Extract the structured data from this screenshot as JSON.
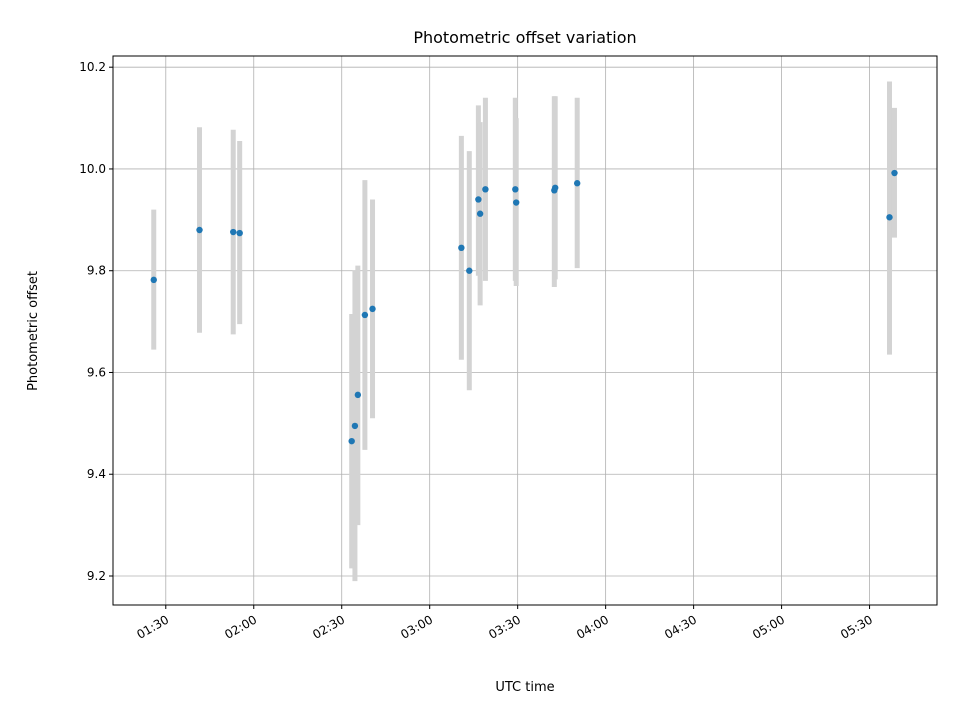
{
  "chart_data": {
    "type": "scatter",
    "title": "Photometric offset variation",
    "xlabel": "UTC time",
    "ylabel": "Photometric offset",
    "xlim_minutes": [
      72,
      353
    ],
    "ylim": [
      9.143,
      10.222
    ],
    "grid": true,
    "point_color": "#1f77b4",
    "errorbar_color": "#d3d3d3",
    "x_ticks": [
      {
        "minute": 90,
        "label": "01:30"
      },
      {
        "minute": 120,
        "label": "02:00"
      },
      {
        "minute": 150,
        "label": "02:30"
      },
      {
        "minute": 180,
        "label": "03:00"
      },
      {
        "minute": 210,
        "label": "03:30"
      },
      {
        "minute": 240,
        "label": "04:00"
      },
      {
        "minute": 270,
        "label": "04:30"
      },
      {
        "minute": 300,
        "label": "05:00"
      },
      {
        "minute": 330,
        "label": "05:30"
      }
    ],
    "y_ticks": [
      {
        "value": 9.2,
        "label": "9.2"
      },
      {
        "value": 9.4,
        "label": "9.4"
      },
      {
        "value": 9.6,
        "label": "9.6"
      },
      {
        "value": 9.8,
        "label": "9.8"
      },
      {
        "value": 10.0,
        "label": "10.0"
      },
      {
        "value": 10.2,
        "label": "10.2"
      }
    ],
    "points": [
      {
        "t": 85.9,
        "y": 9.782,
        "lo": 9.645,
        "hi": 9.92
      },
      {
        "t": 101.5,
        "y": 9.88,
        "lo": 9.678,
        "hi": 10.082
      },
      {
        "t": 113.0,
        "y": 9.876,
        "lo": 9.675,
        "hi": 10.077
      },
      {
        "t": 115.2,
        "y": 9.874,
        "lo": 9.695,
        "hi": 10.055
      },
      {
        "t": 153.4,
        "y": 9.465,
        "lo": 9.215,
        "hi": 9.715
      },
      {
        "t": 154.5,
        "y": 9.495,
        "lo": 9.19,
        "hi": 9.8
      },
      {
        "t": 155.5,
        "y": 9.556,
        "lo": 9.3,
        "hi": 9.81
      },
      {
        "t": 157.9,
        "y": 9.713,
        "lo": 9.448,
        "hi": 9.978
      },
      {
        "t": 160.5,
        "y": 9.725,
        "lo": 9.51,
        "hi": 9.94
      },
      {
        "t": 190.8,
        "y": 9.845,
        "lo": 9.625,
        "hi": 10.065
      },
      {
        "t": 193.5,
        "y": 9.8,
        "lo": 9.565,
        "hi": 10.035
      },
      {
        "t": 196.6,
        "y": 9.94,
        "lo": 9.79,
        "hi": 10.125
      },
      {
        "t": 197.2,
        "y": 9.912,
        "lo": 9.732,
        "hi": 10.092
      },
      {
        "t": 199.0,
        "y": 9.96,
        "lo": 9.78,
        "hi": 10.14
      },
      {
        "t": 209.2,
        "y": 9.96,
        "lo": 9.78,
        "hi": 10.14
      },
      {
        "t": 209.5,
        "y": 9.934,
        "lo": 9.77,
        "hi": 10.1
      },
      {
        "t": 222.5,
        "y": 9.958,
        "lo": 9.768,
        "hi": 10.143
      },
      {
        "t": 222.8,
        "y": 9.963,
        "lo": 9.783,
        "hi": 10.143
      },
      {
        "t": 230.3,
        "y": 9.972,
        "lo": 9.805,
        "hi": 10.14
      },
      {
        "t": 336.8,
        "y": 9.905,
        "lo": 9.635,
        "hi": 10.172
      },
      {
        "t": 338.5,
        "y": 9.992,
        "lo": 9.865,
        "hi": 10.12
      }
    ]
  }
}
